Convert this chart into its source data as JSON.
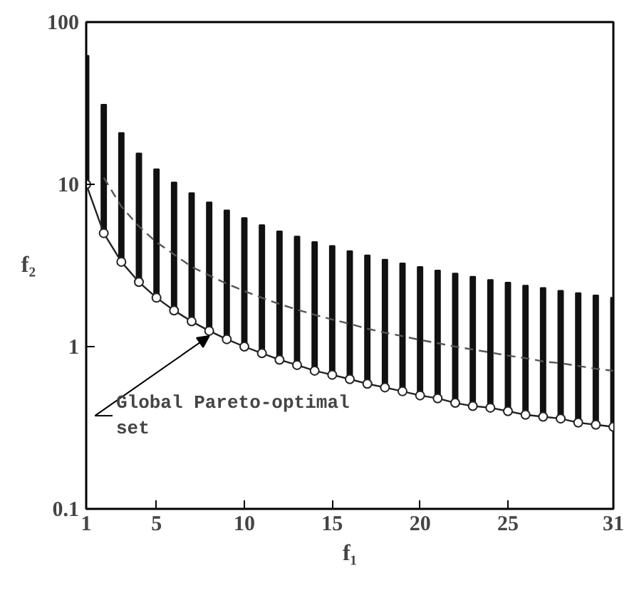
{
  "chart_data": {
    "type": "bar",
    "xlabel": "f₁",
    "ylabel": "f₂",
    "x": [
      1,
      2,
      3,
      4,
      5,
      6,
      7,
      8,
      9,
      10,
      11,
      12,
      13,
      14,
      15,
      16,
      17,
      18,
      19,
      20,
      21,
      22,
      23,
      24,
      25,
      26,
      27,
      28,
      29,
      30,
      31
    ],
    "series": [
      {
        "color": "#111111",
        "base": [
          10,
          5,
          3.33,
          2.5,
          2,
          1.67,
          1.43,
          1.25,
          1.11,
          1,
          0.91,
          0.83,
          0.77,
          0.71,
          0.67,
          0.63,
          0.59,
          0.56,
          0.53,
          0.5,
          0.48,
          0.45,
          0.43,
          0.42,
          0.4,
          0.38,
          0.37,
          0.36,
          0.34,
          0.33,
          0.32
        ],
        "values": [
          52,
          26,
          17.4,
          13,
          10.4,
          8.6,
          7.4,
          6.5,
          5.8,
          5.2,
          4.7,
          4.3,
          4.0,
          3.7,
          3.5,
          3.25,
          3.06,
          2.88,
          2.73,
          2.6,
          2.47,
          2.37,
          2.27,
          2.16,
          2.08,
          2.0,
          1.93,
          1.85,
          1.8,
          1.74,
          1.68
        ]
      },
      {
        "type": "line",
        "color": "#555555",
        "line_style": "dashed",
        "marker": "none",
        "x": [
          2,
          3,
          4,
          5,
          6,
          7,
          8,
          9,
          10,
          11,
          12,
          13,
          14,
          15,
          16,
          17,
          18,
          19,
          20,
          21,
          22,
          23,
          24,
          25,
          26,
          27,
          28,
          29,
          30,
          31
        ],
        "values": [
          11,
          7.3,
          5.5,
          4.4,
          3.7,
          3.1,
          2.75,
          2.44,
          2.2,
          2,
          1.83,
          1.69,
          1.57,
          1.47,
          1.38,
          1.29,
          1.22,
          1.16,
          1.1,
          1.05,
          1,
          0.96,
          0.92,
          0.88,
          0.85,
          0.81,
          0.79,
          0.76,
          0.73,
          0.71
        ]
      },
      {
        "type": "line",
        "color": "#222222",
        "line_style": "solid",
        "marker": "circle",
        "values": [
          10,
          5,
          3.33,
          2.5,
          2,
          1.67,
          1.43,
          1.25,
          1.11,
          1,
          0.91,
          0.83,
          0.77,
          0.71,
          0.67,
          0.63,
          0.59,
          0.56,
          0.53,
          0.5,
          0.48,
          0.45,
          0.43,
          0.42,
          0.4,
          0.38,
          0.37,
          0.36,
          0.34,
          0.33,
          0.32
        ]
      }
    ],
    "annotations": [
      {
        "text": "Global Pareto-optimal\nset",
        "x": 8,
        "y": 1.25
      }
    ],
    "log": "y",
    "xlim": [
      1,
      31
    ],
    "ylim": [
      0.1,
      100
    ],
    "xticks": [
      1,
      5,
      10,
      15,
      20,
      25,
      31
    ],
    "yticks": [
      0.1,
      1,
      10,
      100
    ],
    "grid": false
  }
}
